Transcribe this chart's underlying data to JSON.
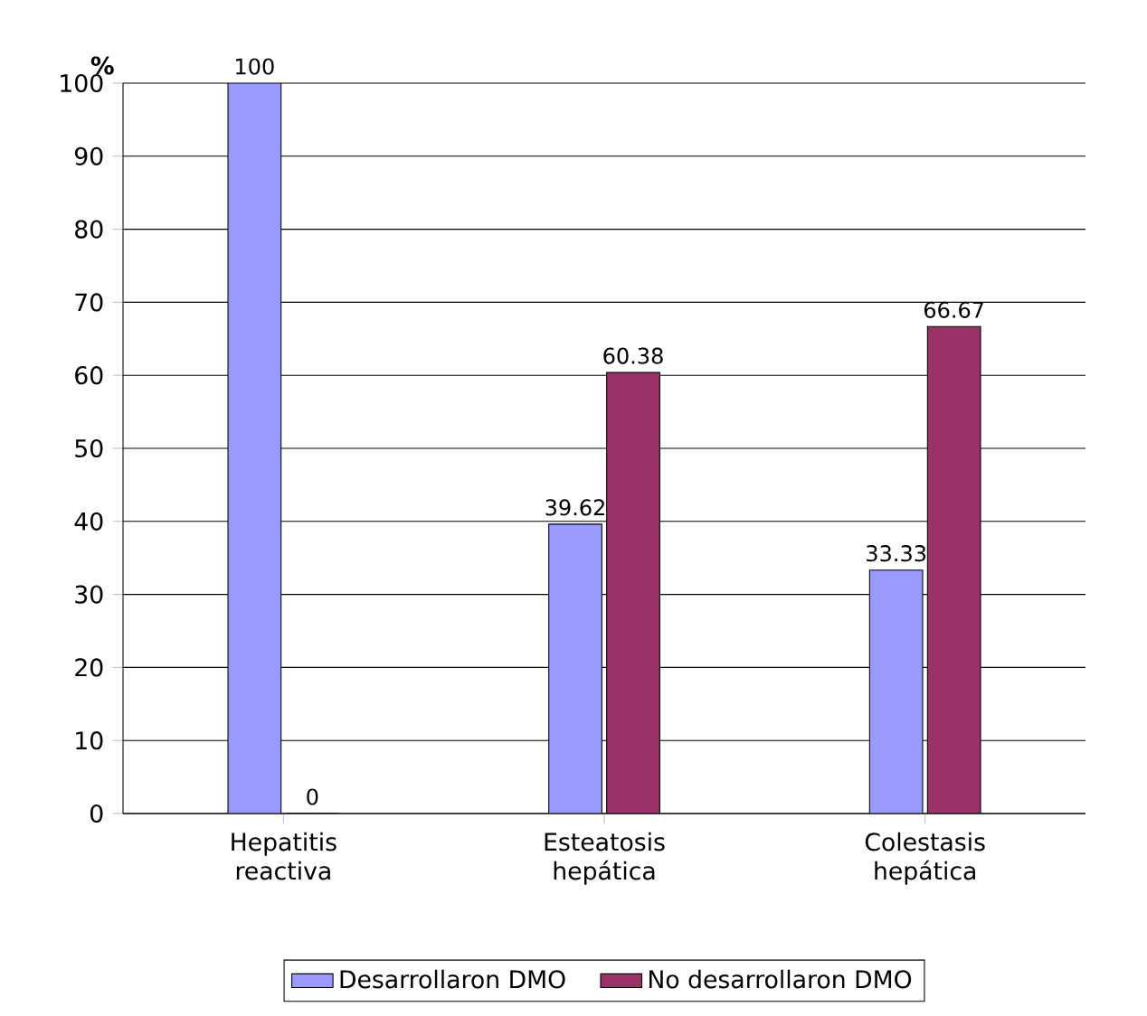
{
  "chart_data": {
    "type": "bar",
    "ylabel": "%",
    "categories": [
      "Hepatitis reactiva",
      "Esteatosis hepática",
      "Colestasis hepática"
    ],
    "series": [
      {
        "name": "Desarrollaron DMO",
        "color": "#9999ff",
        "values": [
          100,
          39.62,
          33.33
        ]
      },
      {
        "name": "No desarrollaron DMO",
        "color": "#993366",
        "values": [
          0,
          60.38,
          66.67
        ]
      }
    ],
    "ylim": [
      0,
      100
    ],
    "yticks": [
      0,
      10,
      20,
      30,
      40,
      50,
      60,
      70,
      80,
      90,
      100
    ],
    "grid": "y",
    "legend": "bottom",
    "data_labels": true
  }
}
